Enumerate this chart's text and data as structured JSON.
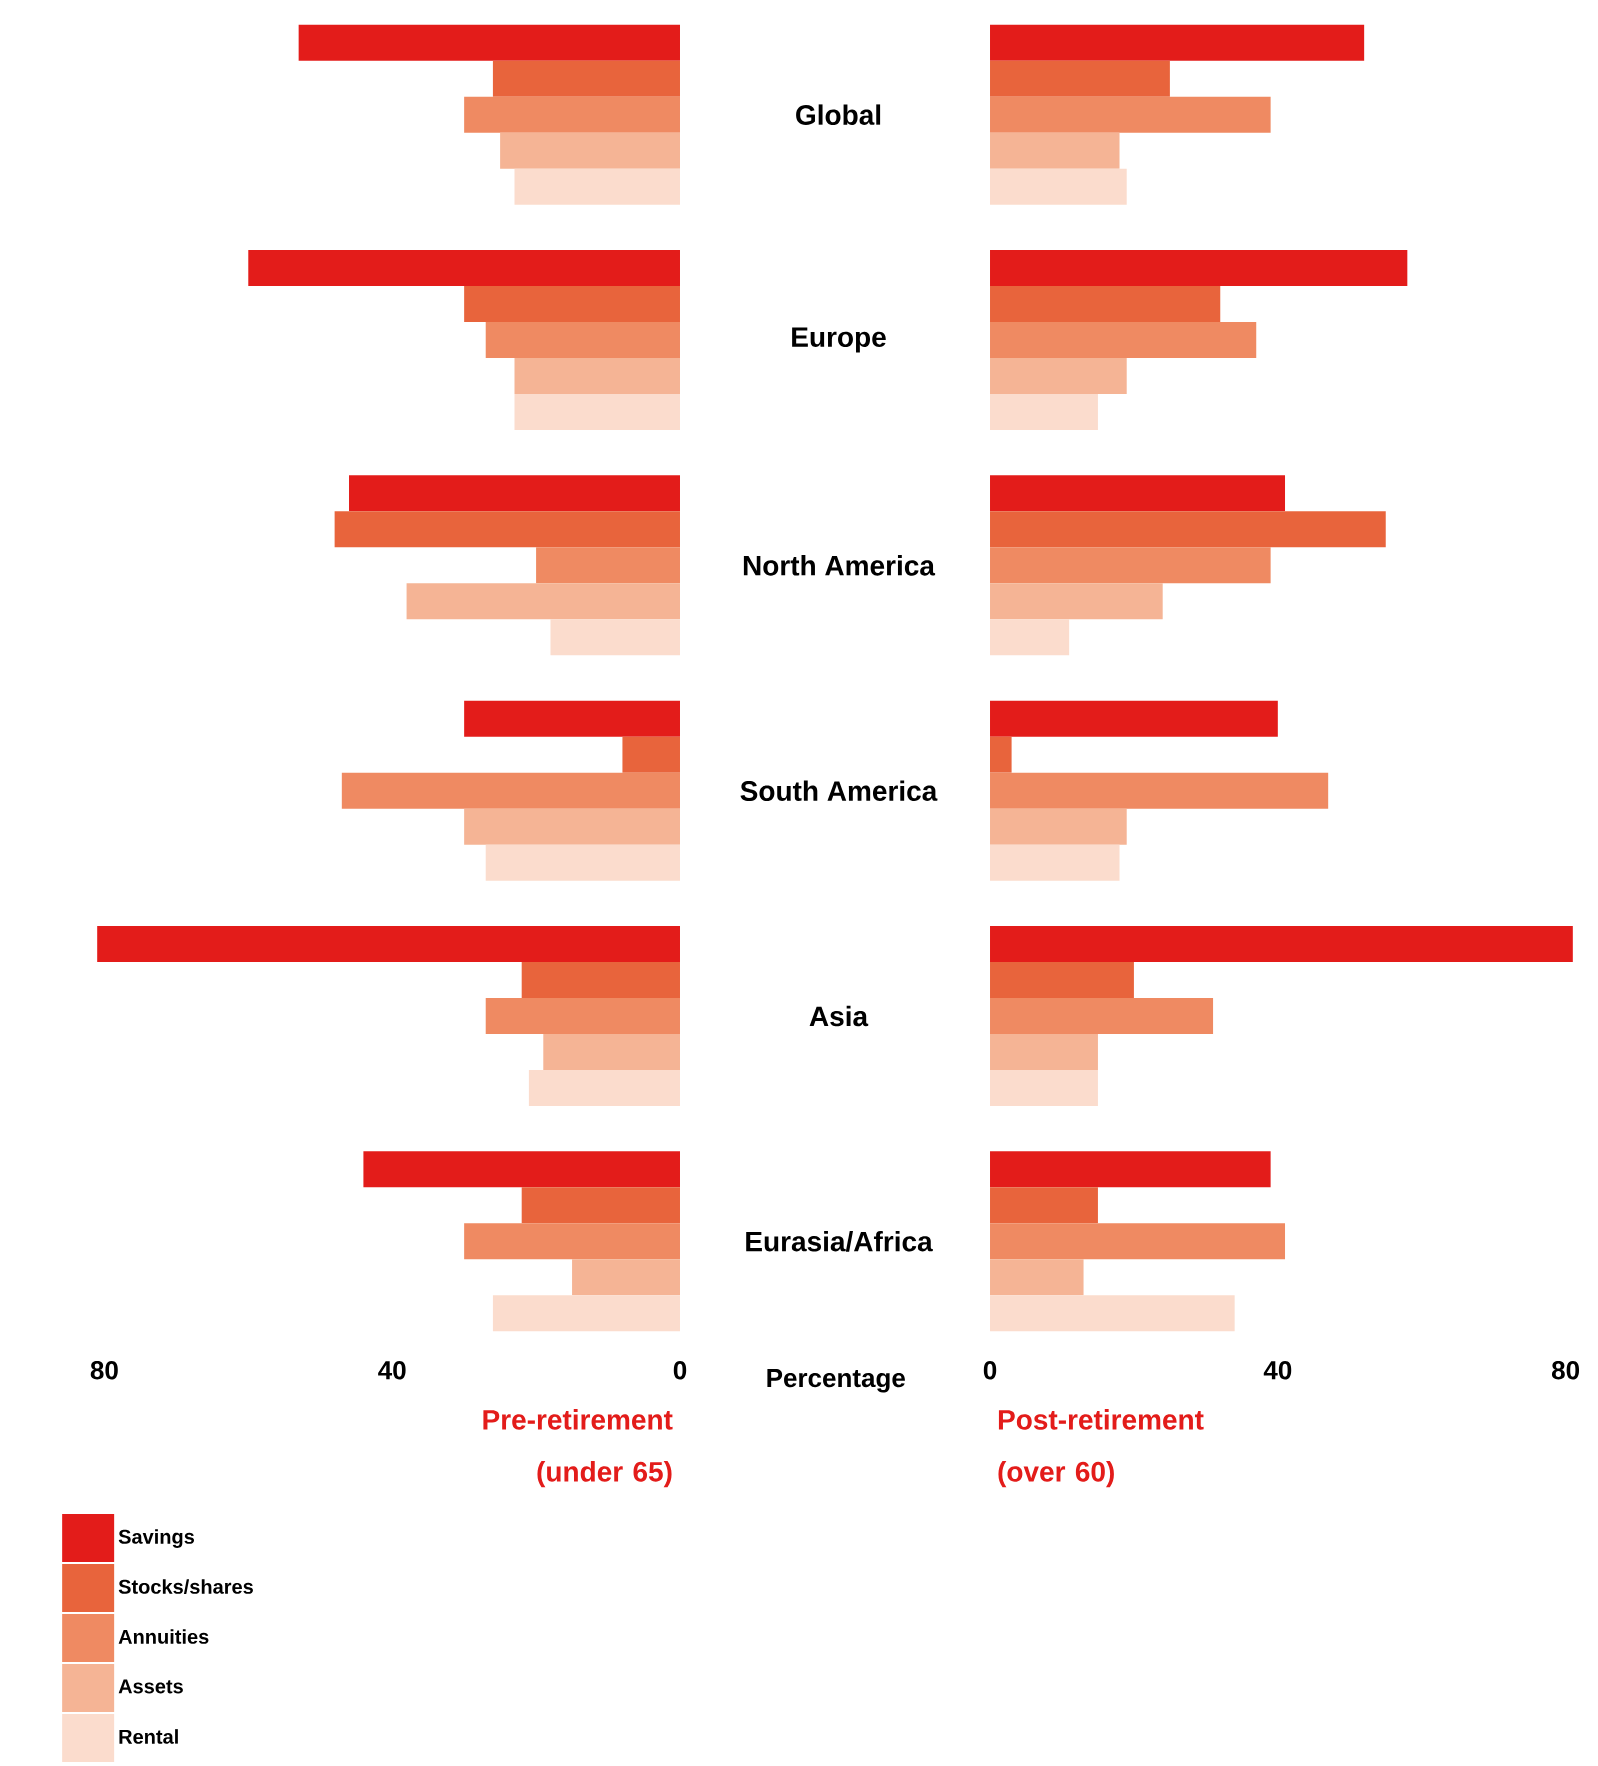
{
  "chart_data": [
    {
      "type": "bar",
      "orientation": "horizontal",
      "title": "Pre-retirement (under 65)",
      "xlabel": "Percentage",
      "categories": [
        "Global",
        "Europe",
        "North America",
        "South America",
        "Asia",
        "Eurasia/Africa"
      ],
      "xlim": [
        82,
        0
      ],
      "xticks": [
        80,
        40,
        0
      ],
      "legend": "bottom left",
      "series": [
        {
          "name": "Savings",
          "color": "#e31c1a",
          "values": [
            53,
            60,
            46,
            30,
            81,
            44
          ]
        },
        {
          "name": "Stocks/shares",
          "color": "#e8643c",
          "values": [
            26,
            30,
            48,
            8,
            22,
            22
          ]
        },
        {
          "name": "Annuities",
          "color": "#ef8a62",
          "values": [
            30,
            27,
            20,
            47,
            27,
            30
          ]
        },
        {
          "name": "Assets",
          "color": "#f5b495",
          "values": [
            25,
            23,
            38,
            30,
            19,
            15
          ]
        },
        {
          "name": "Rental",
          "color": "#fbdccd",
          "values": [
            23,
            23,
            18,
            27,
            21,
            26
          ]
        }
      ]
    },
    {
      "type": "bar",
      "orientation": "horizontal",
      "title": "Post-retirement (over 60)",
      "categories": [
        null,
        null,
        null,
        null,
        null,
        null
      ],
      "xlim": [
        0,
        82
      ],
      "xticks": [
        0,
        40,
        80
      ],
      "series": [
        {
          "color": "#e31c1a",
          "values": [
            52,
            58,
            41,
            40,
            81,
            39
          ]
        },
        {
          "color": "#e8643c",
          "values": [
            25,
            32,
            55,
            3,
            20,
            15
          ]
        },
        {
          "color": "#ef8a62",
          "values": [
            39,
            37,
            39,
            47,
            31,
            41
          ]
        },
        {
          "color": "#f5b495",
          "values": [
            18,
            19,
            24,
            19,
            15,
            13
          ]
        },
        {
          "color": "#fbdccd",
          "values": [
            19,
            15,
            11,
            18,
            15,
            34
          ]
        }
      ]
    }
  ]
}
